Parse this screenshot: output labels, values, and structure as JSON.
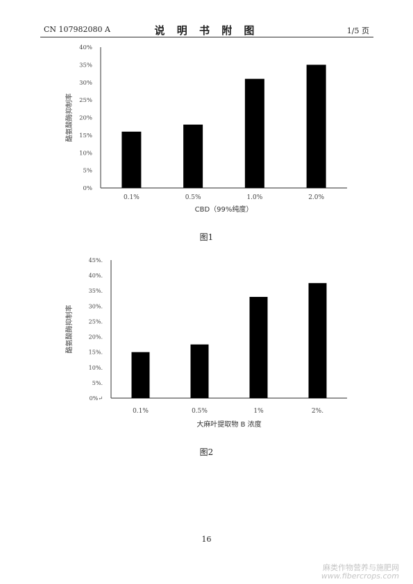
{
  "header": {
    "left": "CN 107982080 A",
    "title": "说 明 书 附 图",
    "right": "1/5 页"
  },
  "figures": [
    {
      "label": "图1"
    },
    {
      "label": "图2"
    }
  ],
  "page_number": "16",
  "watermark": {
    "line1": "麻类作物营养与施肥网",
    "line2": "www.fibercrops.com"
  },
  "chart_data": [
    {
      "type": "bar",
      "categories": [
        "0.1%",
        "0.5%",
        "1.0%",
        "2.0%"
      ],
      "values": [
        16,
        18,
        31,
        35
      ],
      "ytick_labels": [
        "0%",
        "5%",
        "10%",
        "15%",
        "20%",
        "25%",
        "30%",
        "35%",
        "40%"
      ],
      "ylim": [
        0,
        40
      ],
      "title": "",
      "xlabel": "CBD（99%纯度）",
      "ylabel": "酪氨酸酶抑制率",
      "grid": false,
      "bar_color": "#000000"
    },
    {
      "type": "bar",
      "categories": [
        "0.1%",
        "0.5%",
        "1%",
        "2%."
      ],
      "values": [
        15,
        17.5,
        33,
        37.5
      ],
      "ytick_labels": [
        "0%↵",
        "5%.",
        "10%.",
        "15%.",
        "20%.",
        "25%.",
        "30%.",
        "35%.",
        "40%.",
        "45%."
      ],
      "ylim": [
        0,
        45
      ],
      "title": "",
      "xlabel": "大麻叶提取物 B 浓度",
      "ylabel": "酪氨酸酶抑制率",
      "grid": false,
      "bar_color": "#000000"
    }
  ]
}
